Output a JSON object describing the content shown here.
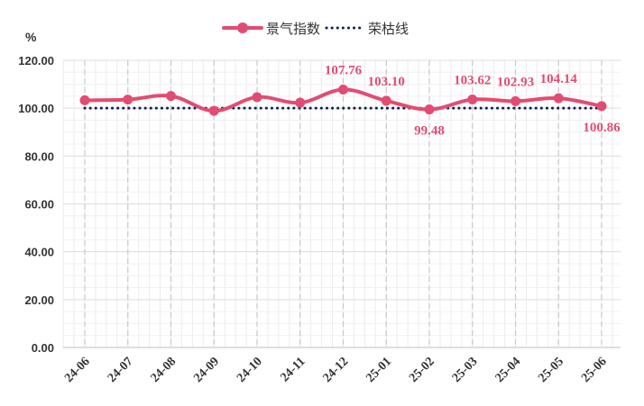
{
  "chart_data": {
    "type": "line",
    "unit": "%",
    "categories": [
      "24-06",
      "24-07",
      "24-08",
      "24-09",
      "24-10",
      "24-11",
      "24-12",
      "25-01",
      "25-02",
      "25-03",
      "25-04",
      "25-05",
      "25-06"
    ],
    "series": [
      {
        "name": "景气指数",
        "values": [
          103.3,
          103.6,
          105.1,
          98.9,
          104.6,
          102.3,
          107.76,
          103.1,
          99.48,
          103.62,
          102.93,
          104.14,
          100.86
        ],
        "data_labels": [
          null,
          null,
          null,
          null,
          null,
          null,
          "107.76",
          "103.10",
          "99.48",
          "103.62",
          "102.93",
          "104.14",
          "100.86"
        ],
        "color": "#e34c72",
        "style": "solid-smooth-with-markers"
      },
      {
        "name": "荣枯线",
        "values": [
          100,
          100,
          100,
          100,
          100,
          100,
          100,
          100,
          100,
          100,
          100,
          100,
          100
        ],
        "color": "#0d1f5c",
        "style": "dotted"
      }
    ],
    "y_ticks": [
      "0.00",
      "20.00",
      "40.00",
      "60.00",
      "80.00",
      "100.00",
      "120.00"
    ],
    "ylim": [
      0,
      120
    ],
    "grid": true,
    "legend_position": "top-center"
  }
}
